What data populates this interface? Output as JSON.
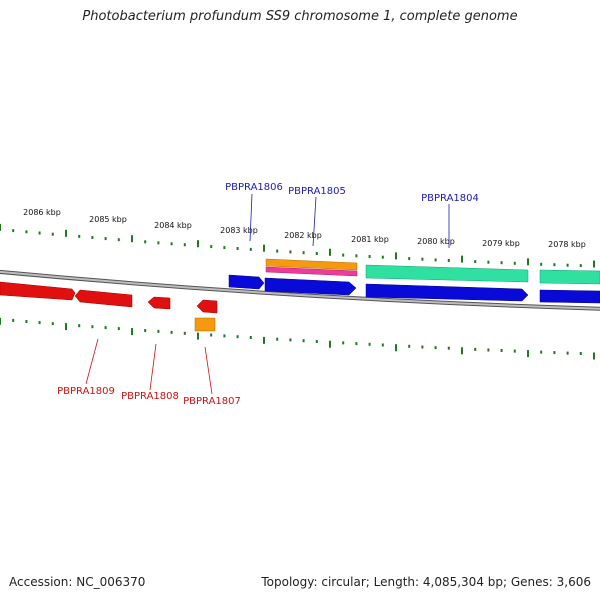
{
  "title": "Photobacterium profundum SS9 chromosome 1, complete genome",
  "footer": {
    "accession": "Accession: NC_006370",
    "summary": "Topology: circular; Length: 4,085,304 bp; Genes: 3,606"
  },
  "colors": {
    "backbone": "#8a8a8a",
    "tick": "#1f7a1f",
    "forward_label": "#1a1ab4",
    "reverse_label": "#d01010",
    "cds_forward": "#0a0ad8",
    "cds_reverse": "#e01010",
    "rna_teal": "#2fe0a0",
    "feature_orange": "#f59a10",
    "feature_pink": "#ee3a9a"
  },
  "ruler": {
    "tick_labels": [
      "2086 kbp",
      "2085 kbp",
      "2084 kbp",
      "2083 kbp",
      "2082 kbp",
      "2081 kbp",
      "2080 kbp",
      "2079 kbp",
      "2078 kbp"
    ]
  },
  "genes": {
    "forward": [
      {
        "name": "PBPRA1806"
      },
      {
        "name": "PBPRA1805"
      },
      {
        "name": "PBPRA1804"
      }
    ],
    "reverse": [
      {
        "name": "PBPRA1809"
      },
      {
        "name": "PBPRA1808"
      },
      {
        "name": "PBPRA1807"
      }
    ]
  }
}
